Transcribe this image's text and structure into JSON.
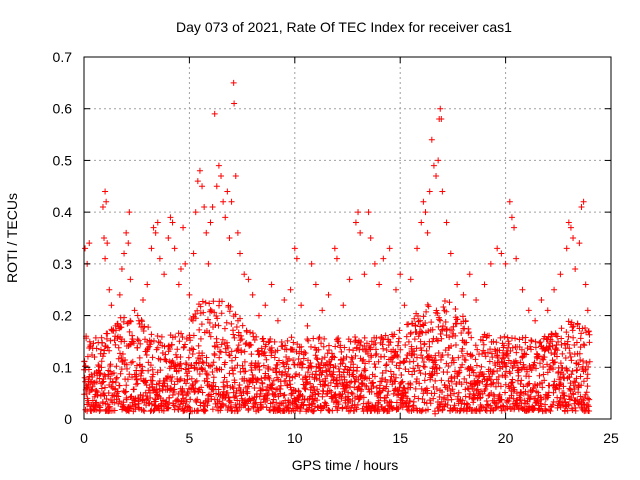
{
  "chart_data": {
    "type": "scatter",
    "title": "Day 073 of 2021, Rate Of TEC Index for receiver cas1",
    "xlabel": "GPS time / hours",
    "ylabel": "ROTI / TECUs",
    "xlim": [
      0,
      25
    ],
    "ylim": [
      0,
      0.7
    ],
    "xticks": [
      0,
      5,
      10,
      15,
      20,
      25
    ],
    "yticks": [
      0,
      0.1,
      0.2,
      0.3,
      0.4,
      0.5,
      0.6,
      0.7
    ],
    "xtick_labels": [
      "0",
      "5",
      "10",
      "15",
      "20",
      "25"
    ],
    "ytick_labels": [
      "0",
      "0.1",
      "0.2",
      "0.3",
      "0.4",
      "0.5",
      "0.6",
      "0.7"
    ],
    "grid": true,
    "marker": "+",
    "color": "#ff0000",
    "series": [
      {
        "name": "cas1 ROTI",
        "points": [
          [
            0.05,
            0.33
          ],
          [
            0.15,
            0.3
          ],
          [
            0.25,
            0.34
          ],
          [
            0.1,
            0.16
          ],
          [
            0.3,
            0.14
          ],
          [
            0.5,
            0.12
          ],
          [
            0.9,
            0.41
          ],
          [
            1.0,
            0.44
          ],
          [
            1.05,
            0.42
          ],
          [
            0.95,
            0.35
          ],
          [
            1.1,
            0.34
          ],
          [
            1.0,
            0.31
          ],
          [
            1.2,
            0.25
          ],
          [
            1.3,
            0.22
          ],
          [
            1.5,
            0.18
          ],
          [
            1.7,
            0.24
          ],
          [
            1.8,
            0.29
          ],
          [
            1.9,
            0.32
          ],
          [
            2.0,
            0.36
          ],
          [
            2.1,
            0.34
          ],
          [
            2.15,
            0.4
          ],
          [
            2.2,
            0.27
          ],
          [
            2.4,
            0.21
          ],
          [
            2.6,
            0.19
          ],
          [
            2.8,
            0.23
          ],
          [
            3.0,
            0.26
          ],
          [
            3.2,
            0.33
          ],
          [
            3.3,
            0.37
          ],
          [
            3.4,
            0.36
          ],
          [
            3.5,
            0.38
          ],
          [
            3.6,
            0.31
          ],
          [
            3.8,
            0.28
          ],
          [
            4.0,
            0.35
          ],
          [
            4.1,
            0.39
          ],
          [
            4.2,
            0.38
          ],
          [
            4.3,
            0.33
          ],
          [
            4.5,
            0.26
          ],
          [
            4.6,
            0.29
          ],
          [
            4.7,
            0.37
          ],
          [
            4.8,
            0.3
          ],
          [
            5.0,
            0.24
          ],
          [
            5.2,
            0.32
          ],
          [
            5.3,
            0.4
          ],
          [
            5.4,
            0.46
          ],
          [
            5.5,
            0.48
          ],
          [
            5.6,
            0.45
          ],
          [
            5.7,
            0.41
          ],
          [
            5.8,
            0.36
          ],
          [
            5.9,
            0.3
          ],
          [
            6.0,
            0.38
          ],
          [
            6.1,
            0.41
          ],
          [
            6.2,
            0.59
          ],
          [
            6.3,
            0.45
          ],
          [
            6.4,
            0.49
          ],
          [
            6.5,
            0.47
          ],
          [
            6.6,
            0.42
          ],
          [
            6.7,
            0.39
          ],
          [
            6.8,
            0.44
          ],
          [
            6.9,
            0.35
          ],
          [
            7.0,
            0.42
          ],
          [
            7.1,
            0.65
          ],
          [
            7.12,
            0.61
          ],
          [
            7.2,
            0.47
          ],
          [
            7.3,
            0.36
          ],
          [
            7.4,
            0.32
          ],
          [
            7.6,
            0.28
          ],
          [
            7.8,
            0.27
          ],
          [
            8.0,
            0.24
          ],
          [
            8.3,
            0.2
          ],
          [
            8.6,
            0.22
          ],
          [
            8.9,
            0.26
          ],
          [
            9.2,
            0.19
          ],
          [
            9.5,
            0.23
          ],
          [
            9.8,
            0.25
          ],
          [
            10.0,
            0.33
          ],
          [
            10.1,
            0.31
          ],
          [
            10.3,
            0.22
          ],
          [
            10.6,
            0.18
          ],
          [
            10.8,
            0.3
          ],
          [
            11.0,
            0.26
          ],
          [
            11.3,
            0.21
          ],
          [
            11.6,
            0.24
          ],
          [
            11.9,
            0.33
          ],
          [
            12.0,
            0.31
          ],
          [
            12.3,
            0.22
          ],
          [
            12.6,
            0.27
          ],
          [
            12.9,
            0.38
          ],
          [
            13.0,
            0.4
          ],
          [
            13.1,
            0.36
          ],
          [
            13.3,
            0.28
          ],
          [
            13.5,
            0.4
          ],
          [
            13.6,
            0.35
          ],
          [
            13.8,
            0.3
          ],
          [
            14.0,
            0.26
          ],
          [
            14.2,
            0.31
          ],
          [
            14.5,
            0.33
          ],
          [
            14.8,
            0.25
          ],
          [
            15.0,
            0.28
          ],
          [
            15.2,
            0.22
          ],
          [
            15.5,
            0.27
          ],
          [
            15.8,
            0.33
          ],
          [
            16.0,
            0.38
          ],
          [
            16.1,
            0.42
          ],
          [
            16.2,
            0.4
          ],
          [
            16.3,
            0.36
          ],
          [
            16.4,
            0.44
          ],
          [
            16.5,
            0.54
          ],
          [
            16.6,
            0.49
          ],
          [
            16.7,
            0.47
          ],
          [
            16.8,
            0.5
          ],
          [
            16.85,
            0.58
          ],
          [
            16.9,
            0.6
          ],
          [
            16.95,
            0.58
          ],
          [
            17.0,
            0.44
          ],
          [
            17.2,
            0.38
          ],
          [
            17.4,
            0.32
          ],
          [
            17.7,
            0.26
          ],
          [
            18.0,
            0.24
          ],
          [
            18.3,
            0.28
          ],
          [
            18.6,
            0.23
          ],
          [
            19.0,
            0.26
          ],
          [
            19.3,
            0.3
          ],
          [
            19.6,
            0.33
          ],
          [
            19.8,
            0.32
          ],
          [
            20.0,
            0.3
          ],
          [
            20.2,
            0.42
          ],
          [
            20.3,
            0.39
          ],
          [
            20.4,
            0.37
          ],
          [
            20.5,
            0.31
          ],
          [
            20.8,
            0.25
          ],
          [
            21.1,
            0.21
          ],
          [
            21.4,
            0.19
          ],
          [
            21.7,
            0.23
          ],
          [
            22.0,
            0.21
          ],
          [
            22.3,
            0.25
          ],
          [
            22.6,
            0.28
          ],
          [
            22.9,
            0.33
          ],
          [
            23.0,
            0.38
          ],
          [
            23.1,
            0.37
          ],
          [
            23.2,
            0.35
          ],
          [
            23.3,
            0.29
          ],
          [
            23.5,
            0.34
          ],
          [
            23.6,
            0.41
          ],
          [
            23.7,
            0.42
          ],
          [
            23.8,
            0.26
          ],
          [
            23.9,
            0.21
          ],
          [
            23.95,
            0.17
          ]
        ]
      }
    ],
    "dense_band": {
      "description_of_values": "bulk ROTI values between 0 and about 0.2 TECUs throughout the day",
      "x_range": [
        0,
        24
      ],
      "y_range": [
        0,
        0.2
      ]
    }
  }
}
